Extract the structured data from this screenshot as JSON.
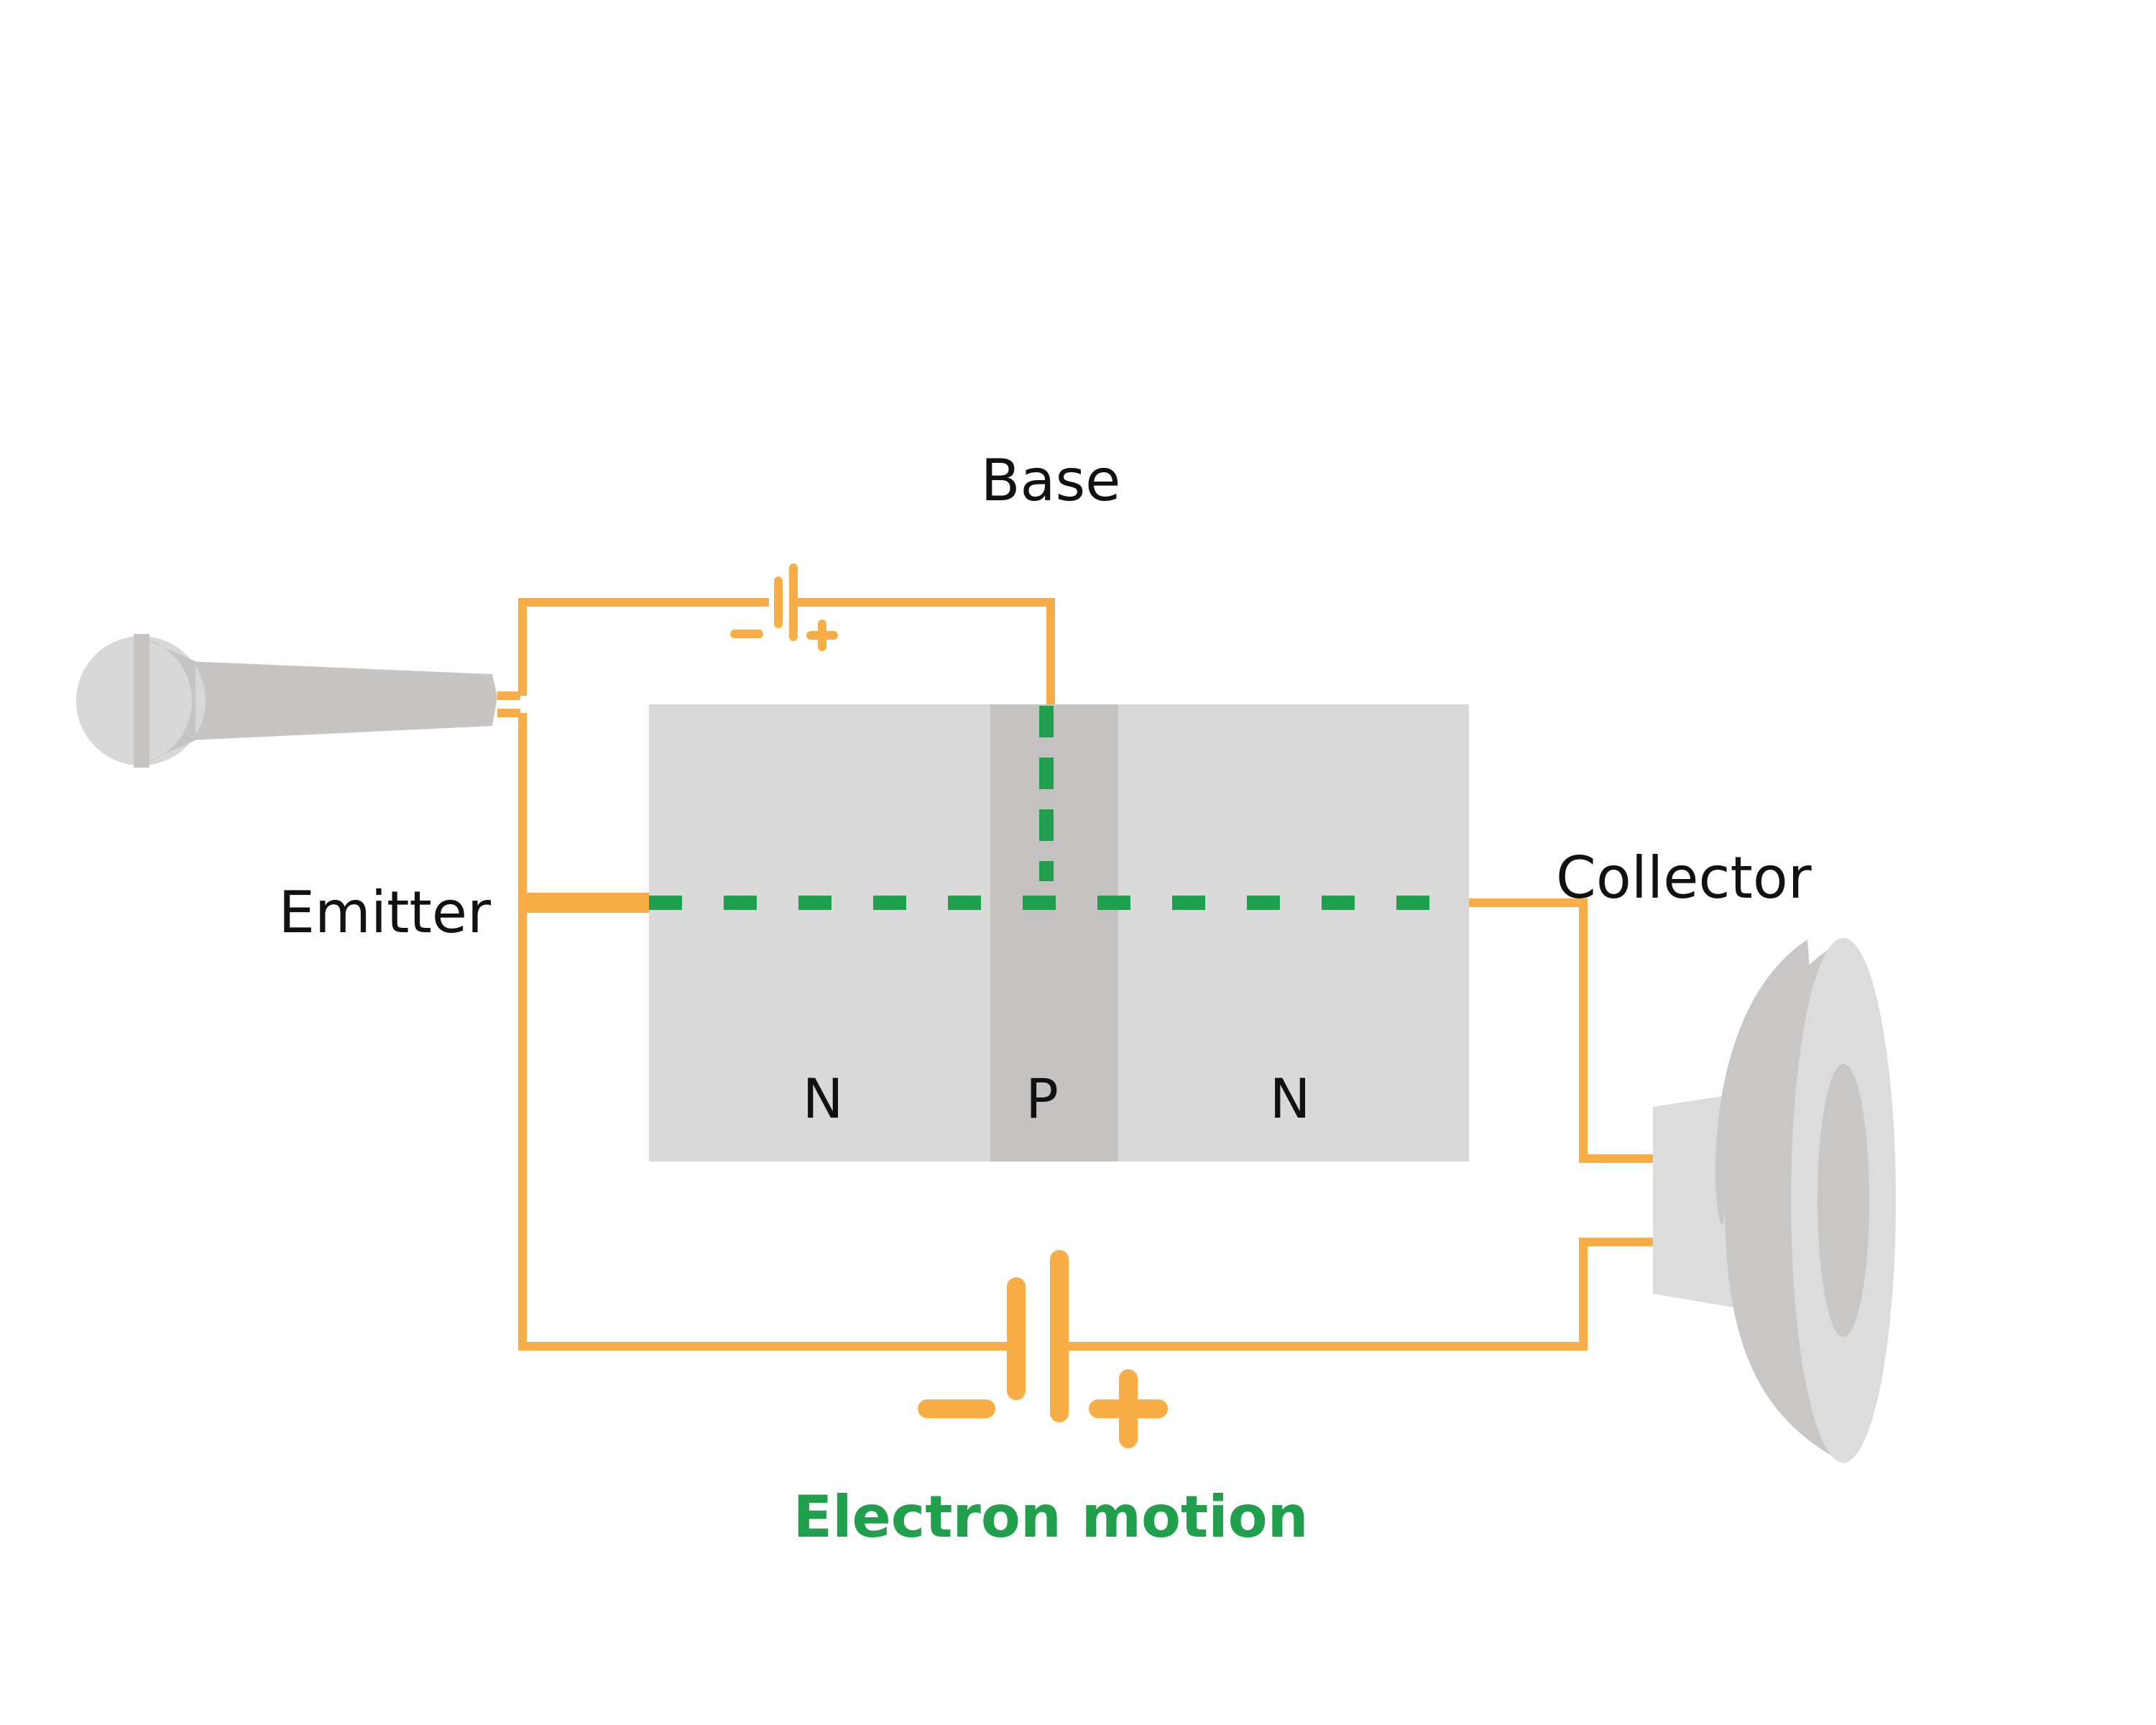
{
  "labels": {
    "base": "Base",
    "emitter": "Emitter",
    "collector": "Collector",
    "region_n_left": "N",
    "region_p": "P",
    "region_n_right": "N",
    "electron_motion": "Electron motion"
  },
  "colors": {
    "wire": "#F8AE47",
    "electron_path": "#20A04D",
    "semiconductor_n": "#D9D9D9",
    "semiconductor_p": "#C4C3C2",
    "microphone_body": "#C6C5C3",
    "microphone_head": "#D8D8D8",
    "speaker_light": "#DCDCDC",
    "speaker_mid": "#C8C7C5",
    "text": "#111111"
  },
  "icons": {
    "input_device": "microphone-icon",
    "output_device": "speaker-icon"
  }
}
